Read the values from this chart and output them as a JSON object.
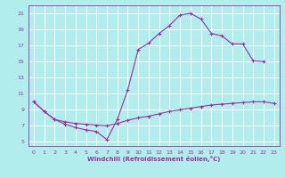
{
  "title": "",
  "xlabel": "Windchill (Refroidissement éolien,°C)",
  "bg_color": "#b2eded",
  "grid_color": "#ffffff",
  "line_color": "#993399",
  "xlim": [
    -0.5,
    23.5
  ],
  "ylim": [
    4.5,
    22.0
  ],
  "xticks": [
    0,
    1,
    2,
    3,
    4,
    5,
    6,
    7,
    8,
    9,
    10,
    11,
    12,
    13,
    14,
    15,
    16,
    17,
    18,
    19,
    20,
    21,
    22,
    23
  ],
  "yticks": [
    5,
    7,
    9,
    11,
    13,
    15,
    17,
    19,
    21
  ],
  "line1_x": [
    0,
    1,
    2,
    3,
    4,
    5,
    6,
    7,
    8,
    9,
    10,
    11,
    12,
    13,
    14,
    15,
    16,
    17,
    18,
    19,
    20,
    21,
    22
  ],
  "line1_y": [
    10.0,
    8.8,
    7.8,
    7.2,
    6.8,
    6.5,
    6.3,
    5.3,
    7.8,
    11.5,
    16.5,
    17.3,
    18.5,
    19.5,
    20.8,
    21.0,
    20.3,
    18.5,
    18.2,
    17.2,
    17.2,
    15.1,
    15.0
  ],
  "line2_x": [
    0,
    1,
    2,
    3,
    4,
    5,
    6,
    7,
    8,
    9,
    10,
    11,
    12,
    13,
    14,
    15,
    16,
    17,
    18,
    19,
    20,
    21,
    22,
    23
  ],
  "line2_y": [
    10.0,
    8.8,
    7.8,
    7.5,
    7.3,
    7.2,
    7.1,
    7.0,
    7.3,
    7.7,
    8.0,
    8.2,
    8.5,
    8.8,
    9.0,
    9.2,
    9.4,
    9.6,
    9.7,
    9.8,
    9.9,
    10.0,
    10.0,
    9.8
  ],
  "marker": "+"
}
